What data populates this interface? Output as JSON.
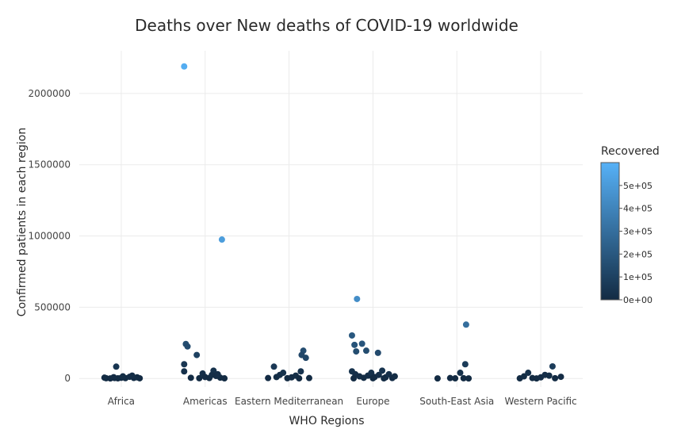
{
  "chart_data": {
    "type": "scatter",
    "title": "Deaths over New deaths of COVID-19 worldwide",
    "xlabel": "WHO Regions",
    "ylabel": "Confirmed patients in each region",
    "categories": [
      "Africa",
      "Americas",
      "Eastern Mediterranean",
      "Europe",
      "South-East Asia",
      "Western Pacific"
    ],
    "ylim": [
      -60000,
      2300000
    ],
    "yticks": [
      0,
      500000,
      1000000,
      1500000,
      2000000
    ],
    "ytick_labels": [
      "0",
      "500000",
      "1000000",
      "1500000",
      "2000000"
    ],
    "grid": true,
    "colorbar": {
      "title": "Recovered",
      "min": 0,
      "max": 600000,
      "ticks": [
        0,
        100000,
        200000,
        300000,
        400000,
        500000
      ],
      "tick_labels": [
        "0e+00",
        "1e+05",
        "2e+05",
        "3e+05",
        "4e+05",
        "5e+05"
      ],
      "color_low": "#132b43",
      "color_high": "#56b1f7",
      "placement": "right"
    },
    "points": [
      {
        "x": "Africa",
        "jitter": -0.18,
        "y": 2000,
        "recovered": 1000
      },
      {
        "x": "Africa",
        "jitter": -0.13,
        "y": 500,
        "recovered": 300
      },
      {
        "x": "Africa",
        "jitter": -0.08,
        "y": 3000,
        "recovered": 2000
      },
      {
        "x": "Africa",
        "jitter": -0.04,
        "y": 1000,
        "recovered": 500
      },
      {
        "x": "Africa",
        "jitter": 0.0,
        "y": 5000,
        "recovered": 3000
      },
      {
        "x": "Africa",
        "jitter": 0.05,
        "y": 2500,
        "recovered": 1500
      },
      {
        "x": "Africa",
        "jitter": 0.1,
        "y": 12000,
        "recovered": 6000
      },
      {
        "x": "Africa",
        "jitter": 0.15,
        "y": 4000,
        "recovered": 2000
      },
      {
        "x": "Africa",
        "jitter": 0.19,
        "y": 8000,
        "recovered": 4000
      },
      {
        "x": "Africa",
        "jitter": 0.22,
        "y": 1500,
        "recovered": 800
      },
      {
        "x": "Africa",
        "jitter": -0.2,
        "y": 6000,
        "recovered": 3000
      },
      {
        "x": "Africa",
        "jitter": -0.09,
        "y": 9000,
        "recovered": 5000
      },
      {
        "x": "Africa",
        "jitter": 0.02,
        "y": 15000,
        "recovered": 7000
      },
      {
        "x": "Africa",
        "jitter": 0.13,
        "y": 20000,
        "recovered": 10000
      },
      {
        "x": "Africa",
        "jitter": -0.06,
        "y": 83000,
        "recovered": 45000
      },
      {
        "x": "Americas",
        "jitter": -0.25,
        "y": 2190000,
        "recovered": 580000
      },
      {
        "x": "Americas",
        "jitter": 0.2,
        "y": 975000,
        "recovered": 510000
      },
      {
        "x": "Americas",
        "jitter": -0.23,
        "y": 242000,
        "recovered": 150000
      },
      {
        "x": "Americas",
        "jitter": -0.21,
        "y": 225000,
        "recovered": 140000
      },
      {
        "x": "Americas",
        "jitter": -0.1,
        "y": 165000,
        "recovered": 100000
      },
      {
        "x": "Americas",
        "jitter": -0.25,
        "y": 100000,
        "recovered": 50000
      },
      {
        "x": "Americas",
        "jitter": -0.25,
        "y": 50000,
        "recovered": 25000
      },
      {
        "x": "Americas",
        "jitter": 0.1,
        "y": 55000,
        "recovered": 30000
      },
      {
        "x": "Americas",
        "jitter": -0.03,
        "y": 35000,
        "recovered": 20000
      },
      {
        "x": "Americas",
        "jitter": -0.17,
        "y": 5000,
        "recovered": 2000
      },
      {
        "x": "Americas",
        "jitter": -0.07,
        "y": 2000,
        "recovered": 1000
      },
      {
        "x": "Americas",
        "jitter": 0.0,
        "y": 10000,
        "recovered": 5000
      },
      {
        "x": "Americas",
        "jitter": 0.05,
        "y": 3000,
        "recovered": 1500
      },
      {
        "x": "Americas",
        "jitter": 0.08,
        "y": 25000,
        "recovered": 12000
      },
      {
        "x": "Americas",
        "jitter": 0.13,
        "y": 18000,
        "recovered": 9000
      },
      {
        "x": "Americas",
        "jitter": 0.18,
        "y": 6000,
        "recovered": 3000
      },
      {
        "x": "Americas",
        "jitter": 0.23,
        "y": 1000,
        "recovered": 500
      },
      {
        "x": "Americas",
        "jitter": 0.15,
        "y": 30000,
        "recovered": 15000
      },
      {
        "x": "Eastern Mediterranean",
        "jitter": -0.25,
        "y": 3000,
        "recovered": 2000
      },
      {
        "x": "Eastern Mediterranean",
        "jitter": -0.18,
        "y": 83000,
        "recovered": 60000
      },
      {
        "x": "Eastern Mediterranean",
        "jitter": -0.15,
        "y": 10000,
        "recovered": 7000
      },
      {
        "x": "Eastern Mediterranean",
        "jitter": -0.11,
        "y": 25000,
        "recovered": 15000
      },
      {
        "x": "Eastern Mediterranean",
        "jitter": -0.07,
        "y": 40000,
        "recovered": 30000
      },
      {
        "x": "Eastern Mediterranean",
        "jitter": -0.02,
        "y": 2000,
        "recovered": 1000
      },
      {
        "x": "Eastern Mediterranean",
        "jitter": 0.03,
        "y": 8000,
        "recovered": 5000
      },
      {
        "x": "Eastern Mediterranean",
        "jitter": 0.08,
        "y": 20000,
        "recovered": 12000
      },
      {
        "x": "Eastern Mediterranean",
        "jitter": 0.14,
        "y": 50000,
        "recovered": 35000
      },
      {
        "x": "Eastern Mediterranean",
        "jitter": 0.17,
        "y": 195000,
        "recovered": 150000
      },
      {
        "x": "Eastern Mediterranean",
        "jitter": 0.15,
        "y": 165000,
        "recovered": 130000
      },
      {
        "x": "Eastern Mediterranean",
        "jitter": 0.2,
        "y": 145000,
        "recovered": 120000
      },
      {
        "x": "Eastern Mediterranean",
        "jitter": 0.24,
        "y": 3000,
        "recovered": 2000
      },
      {
        "x": "Eastern Mediterranean",
        "jitter": 0.12,
        "y": 1000,
        "recovered": 500
      },
      {
        "x": "Europe",
        "jitter": -0.25,
        "y": 302000,
        "recovered": 200000
      },
      {
        "x": "Europe",
        "jitter": -0.22,
        "y": 236000,
        "recovered": 180000
      },
      {
        "x": "Europe",
        "jitter": -0.13,
        "y": 244000,
        "recovered": 190000
      },
      {
        "x": "Europe",
        "jitter": -0.2,
        "y": 190000,
        "recovered": 150000
      },
      {
        "x": "Europe",
        "jitter": -0.08,
        "y": 195000,
        "recovered": 150000
      },
      {
        "x": "Europe",
        "jitter": 0.06,
        "y": 180000,
        "recovered": 140000
      },
      {
        "x": "Europe",
        "jitter": -0.19,
        "y": 558000,
        "recovered": 440000
      },
      {
        "x": "Europe",
        "jitter": -0.25,
        "y": 50000,
        "recovered": 30000
      },
      {
        "x": "Europe",
        "jitter": -0.21,
        "y": 30000,
        "recovered": 20000
      },
      {
        "x": "Europe",
        "jitter": -0.16,
        "y": 15000,
        "recovered": 10000
      },
      {
        "x": "Europe",
        "jitter": -0.11,
        "y": 5000,
        "recovered": 3000
      },
      {
        "x": "Europe",
        "jitter": -0.06,
        "y": 20000,
        "recovered": 10000
      },
      {
        "x": "Europe",
        "jitter": -0.02,
        "y": 40000,
        "recovered": 25000
      },
      {
        "x": "Europe",
        "jitter": 0.02,
        "y": 10000,
        "recovered": 6000
      },
      {
        "x": "Europe",
        "jitter": 0.07,
        "y": 25000,
        "recovered": 15000
      },
      {
        "x": "Europe",
        "jitter": 0.11,
        "y": 55000,
        "recovered": 35000
      },
      {
        "x": "Europe",
        "jitter": 0.15,
        "y": 8000,
        "recovered": 5000
      },
      {
        "x": "Europe",
        "jitter": 0.19,
        "y": 30000,
        "recovered": 20000
      },
      {
        "x": "Europe",
        "jitter": 0.23,
        "y": 3000,
        "recovered": 2000
      },
      {
        "x": "Europe",
        "jitter": 0.26,
        "y": 15000,
        "recovered": 8000
      },
      {
        "x": "Europe",
        "jitter": -0.23,
        "y": 1000,
        "recovered": 500
      },
      {
        "x": "Europe",
        "jitter": 0.0,
        "y": 2000,
        "recovered": 1000
      },
      {
        "x": "Europe",
        "jitter": 0.13,
        "y": 1000,
        "recovered": 500
      },
      {
        "x": "South-East Asia",
        "jitter": -0.23,
        "y": 500,
        "recovered": 300
      },
      {
        "x": "South-East Asia",
        "jitter": -0.08,
        "y": 3000,
        "recovered": 2000
      },
      {
        "x": "South-East Asia",
        "jitter": -0.02,
        "y": 1000,
        "recovered": 500
      },
      {
        "x": "South-East Asia",
        "jitter": 0.04,
        "y": 40000,
        "recovered": 25000
      },
      {
        "x": "South-East Asia",
        "jitter": 0.08,
        "y": 2000,
        "recovered": 1000
      },
      {
        "x": "South-East Asia",
        "jitter": 0.1,
        "y": 100000,
        "recovered": 70000
      },
      {
        "x": "South-East Asia",
        "jitter": 0.11,
        "y": 378000,
        "recovered": 300000
      },
      {
        "x": "South-East Asia",
        "jitter": 0.14,
        "y": 500,
        "recovered": 200
      },
      {
        "x": "Western Pacific",
        "jitter": -0.25,
        "y": 1000,
        "recovered": 500
      },
      {
        "x": "Western Pacific",
        "jitter": -0.2,
        "y": 15000,
        "recovered": 8000
      },
      {
        "x": "Western Pacific",
        "jitter": -0.15,
        "y": 40000,
        "recovered": 25000
      },
      {
        "x": "Western Pacific",
        "jitter": -0.1,
        "y": 3000,
        "recovered": 1500
      },
      {
        "x": "Western Pacific",
        "jitter": -0.05,
        "y": 500,
        "recovered": 300
      },
      {
        "x": "Western Pacific",
        "jitter": 0.0,
        "y": 8000,
        "recovered": 5000
      },
      {
        "x": "Western Pacific",
        "jitter": 0.05,
        "y": 25000,
        "recovered": 15000
      },
      {
        "x": "Western Pacific",
        "jitter": 0.1,
        "y": 20000,
        "recovered": 12000
      },
      {
        "x": "Western Pacific",
        "jitter": 0.14,
        "y": 85000,
        "recovered": 78000
      },
      {
        "x": "Western Pacific",
        "jitter": 0.17,
        "y": 2000,
        "recovered": 1000
      },
      {
        "x": "Western Pacific",
        "jitter": 0.24,
        "y": 12000,
        "recovered": 6000
      }
    ]
  }
}
